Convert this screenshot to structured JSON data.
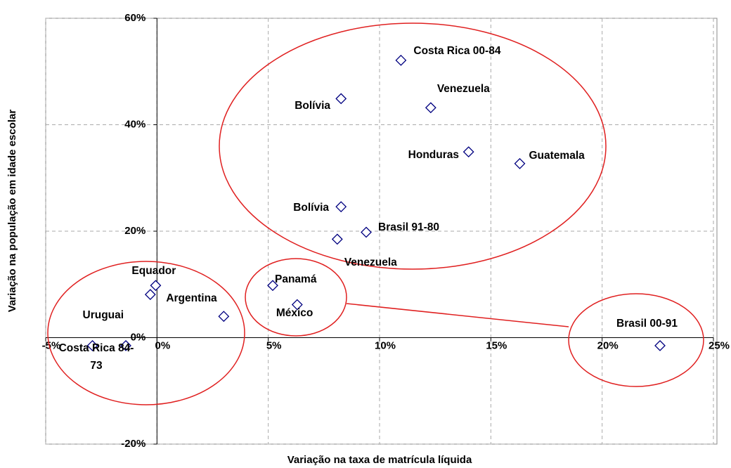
{
  "chart_data": {
    "type": "scatter",
    "x_label": "Variação na taxa de matrícula líquida",
    "y_label": "Variação na população em idade escolar",
    "color": "#000080",
    "grid": true,
    "xlim": [
      -5,
      25
    ],
    "ylim": [
      -20,
      60
    ],
    "xticks": [
      {
        "value": -5,
        "label": "-5%"
      },
      {
        "value": 0,
        "label": "0%"
      },
      {
        "value": 5,
        "label": "5%"
      },
      {
        "value": 10,
        "label": "10%"
      },
      {
        "value": 15,
        "label": "15%"
      },
      {
        "value": 20,
        "label": "20%"
      },
      {
        "value": 25,
        "label": "25%"
      }
    ],
    "yticks": [
      {
        "value": -20,
        "label": "-20%"
      },
      {
        "value": 0,
        "label": "0%"
      },
      {
        "value": 20,
        "label": "20%"
      },
      {
        "value": 40,
        "label": "40%"
      },
      {
        "value": 60,
        "label": "60%"
      }
    ],
    "x": [
      10.96,
      8.27,
      12.3,
      14.0,
      16.3,
      8.27,
      9.4,
      8.1,
      5.2,
      6.3,
      -0.06,
      -0.3,
      3.0,
      -2.9,
      -1.4,
      22.6
    ],
    "values": [
      52.1,
      44.9,
      43.2,
      34.9,
      32.7,
      24.6,
      19.8,
      18.5,
      9.8,
      6.2,
      9.8,
      8.1,
      4.0,
      -1.5,
      -1.5,
      -1.5
    ],
    "labels": [
      "Costa Rica 00-84",
      "Bolívia",
      "Venezuela",
      "Honduras",
      "Guatemala",
      "Bolívia",
      "Brasil 91-80",
      "Venezuela",
      "Panamá",
      "México",
      "Equador",
      null,
      "Argentina",
      "Uruguai",
      "Costa Rica 84-73",
      "Brasil 00-91"
    ]
  }
}
